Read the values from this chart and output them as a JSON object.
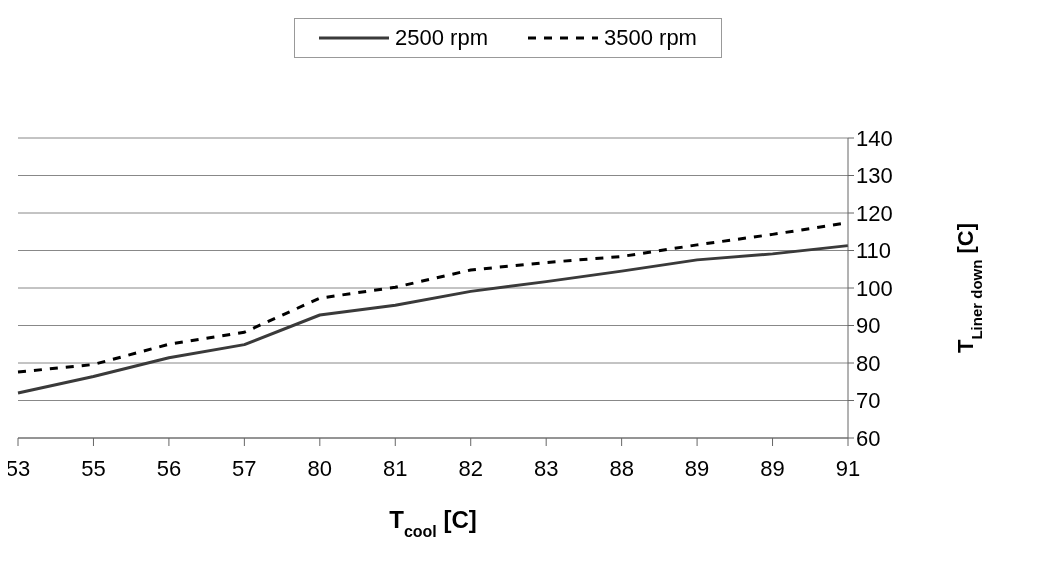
{
  "chart_data": {
    "type": "line",
    "xlabel": "T$_{cool}$ [C]",
    "ylabel": "T$_{Liner down}$ [C]",
    "categories": [
      "53",
      "55",
      "56",
      "57",
      "80",
      "81",
      "82",
      "83",
      "88",
      "89",
      "89",
      "91"
    ],
    "series": [
      {
        "name": "2500 rpm",
        "color": "#3a3a3a",
        "line_style": "solid",
        "values": [
          72,
          76.4,
          81.4,
          84.9,
          92.8,
          95.4,
          99.1,
          101.7,
          104.5,
          107.5,
          109.1,
          111.3
        ]
      },
      {
        "name": "3500 rpm",
        "color": "#000000",
        "line_style": "dashed",
        "values": [
          77.6,
          79.6,
          85,
          88.2,
          97.3,
          100.2,
          104.8,
          106.8,
          108.4,
          111.5,
          114.3,
          117.4
        ]
      }
    ],
    "ylim": [
      60,
      140
    ],
    "yticks": [
      60,
      70,
      80,
      90,
      100,
      110,
      120,
      130,
      140
    ],
    "grid": "y",
    "legend": "top",
    "marker": "none"
  }
}
